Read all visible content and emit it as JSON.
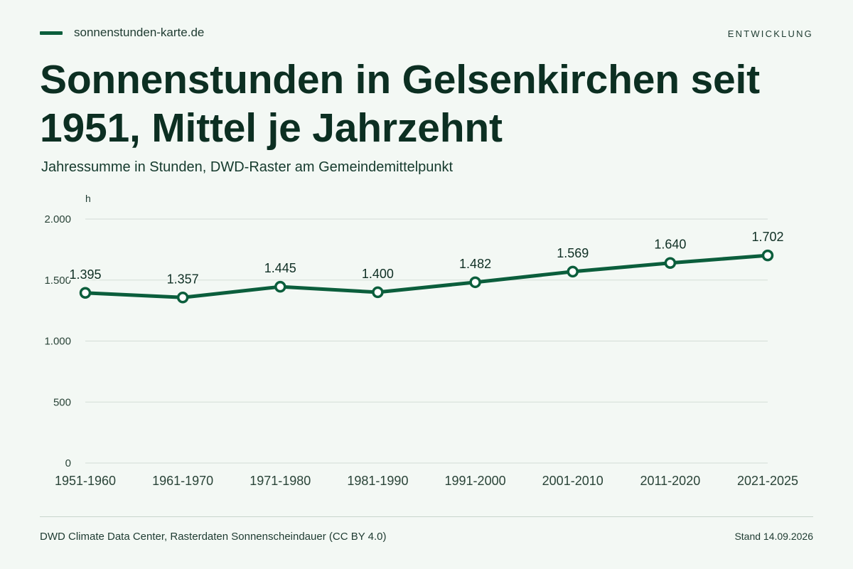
{
  "header": {
    "brand": "sonnenstunden-karte.de",
    "section": "ENTWICKLUNG",
    "title": "Sonnenstunden in Gelsenkirchen seit 1951, Mittel je Jahrzehnt",
    "subtitle": "Jahressumme in Stunden, DWD-Raster am Gemeindemittelpunkt"
  },
  "footer": {
    "source": "DWD Climate Data Center, Rasterdaten Sonnenscheindauer (CC BY 4.0)",
    "stand": "Stand 14.09.2026"
  },
  "colors": {
    "line": "#0b5e3c",
    "grid": "#d3ddd6",
    "background": "#f3f8f4"
  },
  "chart_data": {
    "type": "line",
    "title": "Sonnenstunden in Gelsenkirchen seit 1951, Mittel je Jahrzehnt",
    "subtitle": "Jahressumme in Stunden, DWD-Raster am Gemeindemittelpunkt",
    "ylabel": "h",
    "xlabel": "",
    "ylim": [
      0,
      2000
    ],
    "yticks": [
      0,
      500,
      1000,
      1500,
      2000
    ],
    "ytick_labels": [
      "0",
      "500",
      "1.000",
      "1.500",
      "2.000"
    ],
    "categories": [
      "1951-1960",
      "1961-1970",
      "1971-1980",
      "1981-1990",
      "1991-2000",
      "2001-2010",
      "2011-2020",
      "2021-2025"
    ],
    "values": [
      1395,
      1357,
      1445,
      1400,
      1482,
      1569,
      1640,
      1702
    ],
    "value_labels": [
      "1.395",
      "1.357",
      "1.445",
      "1.400",
      "1.482",
      "1.569",
      "1.640",
      "1.702"
    ],
    "grid": true,
    "legend": "none"
  }
}
